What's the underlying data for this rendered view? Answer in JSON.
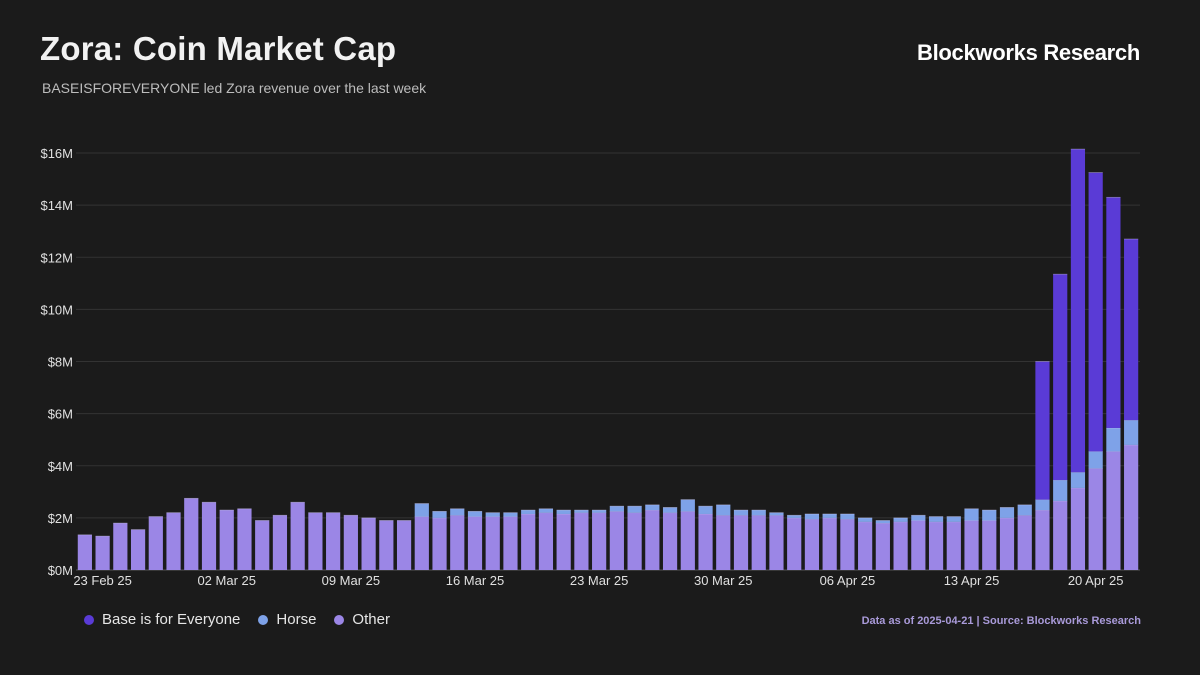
{
  "header": {
    "title": "Zora: Coin Market Cap",
    "subtitle": "BASEISFOREVERYONE led Zora revenue over the last week",
    "brand": "Blockworks Research"
  },
  "footer": {
    "note": "Data as of 2025-04-21 | Source: Blockworks Research"
  },
  "colors": {
    "background": "#1b1b1b",
    "base": "#5a3bd6",
    "horse": "#7ea2e8",
    "other": "#9b86e6",
    "grid": "#333333"
  },
  "chart_data": {
    "type": "bar",
    "stacked": true,
    "title": "Zora: Coin Market Cap",
    "subtitle": "BASEISFOREVERYONE led Zora revenue over the last week",
    "xlabel": "",
    "ylabel": "",
    "ylim": [
      0,
      16.5
    ],
    "y_unit": "millions USD",
    "y_ticks": [
      "$0M",
      "$2M",
      "$4M",
      "$6M",
      "$8M",
      "$10M",
      "$12M",
      "$14M",
      "$16M"
    ],
    "y_tick_values": [
      0,
      2,
      4,
      6,
      8,
      10,
      12,
      14,
      16
    ],
    "x_tick_labels": [
      {
        "date": "2025-02-23",
        "label": "23 Feb 25"
      },
      {
        "date": "2025-03-02",
        "label": "02 Mar 25"
      },
      {
        "date": "2025-03-09",
        "label": "09 Mar 25"
      },
      {
        "date": "2025-03-16",
        "label": "16 Mar 25"
      },
      {
        "date": "2025-03-23",
        "label": "23 Mar 25"
      },
      {
        "date": "2025-03-30",
        "label": "30 Mar 25"
      },
      {
        "date": "2025-04-06",
        "label": "06 Apr 25"
      },
      {
        "date": "2025-04-13",
        "label": "13 Apr 25"
      },
      {
        "date": "2025-04-20",
        "label": "20 Apr 25"
      }
    ],
    "grid": true,
    "legend_position": "bottom-left",
    "categories": [
      "2025-02-22",
      "2025-02-23",
      "2025-02-24",
      "2025-02-25",
      "2025-02-26",
      "2025-02-27",
      "2025-02-28",
      "2025-03-01",
      "2025-03-02",
      "2025-03-03",
      "2025-03-04",
      "2025-03-05",
      "2025-03-06",
      "2025-03-07",
      "2025-03-08",
      "2025-03-09",
      "2025-03-10",
      "2025-03-11",
      "2025-03-12",
      "2025-03-13",
      "2025-03-14",
      "2025-03-15",
      "2025-03-16",
      "2025-03-17",
      "2025-03-18",
      "2025-03-19",
      "2025-03-20",
      "2025-03-21",
      "2025-03-22",
      "2025-03-23",
      "2025-03-24",
      "2025-03-25",
      "2025-03-26",
      "2025-03-27",
      "2025-03-28",
      "2025-03-29",
      "2025-03-30",
      "2025-03-31",
      "2025-04-01",
      "2025-04-02",
      "2025-04-03",
      "2025-04-04",
      "2025-04-05",
      "2025-04-06",
      "2025-04-07",
      "2025-04-08",
      "2025-04-09",
      "2025-04-10",
      "2025-04-11",
      "2025-04-12",
      "2025-04-13",
      "2025-04-14",
      "2025-04-15",
      "2025-04-16",
      "2025-04-17",
      "2025-04-18",
      "2025-04-19",
      "2025-04-20",
      "2025-04-21",
      "2025-04-22"
    ],
    "series": [
      {
        "name": "Other",
        "color": "#9b86e6",
        "values": [
          1.35,
          1.3,
          1.8,
          1.55,
          2.05,
          2.2,
          2.75,
          2.6,
          2.3,
          2.35,
          1.9,
          2.1,
          2.6,
          2.2,
          2.2,
          2.1,
          2.0,
          1.9,
          1.9,
          2.05,
          2.0,
          2.1,
          2.05,
          2.05,
          2.05,
          2.15,
          2.2,
          2.15,
          2.2,
          2.2,
          2.25,
          2.2,
          2.3,
          2.2,
          2.25,
          2.15,
          2.1,
          2.1,
          2.1,
          2.1,
          2.0,
          1.95,
          2.0,
          1.95,
          1.85,
          1.8,
          1.85,
          1.9,
          1.85,
          1.85,
          1.9,
          1.9,
          2.0,
          2.1,
          2.3,
          2.65,
          3.15,
          3.9,
          4.55,
          4.8
        ]
      },
      {
        "name": "Horse",
        "color": "#7ea2e8",
        "values": [
          0,
          0,
          0,
          0,
          0,
          0,
          0,
          0,
          0,
          0,
          0,
          0,
          0,
          0,
          0,
          0,
          0,
          0,
          0,
          0.5,
          0.25,
          0.25,
          0.2,
          0.15,
          0.15,
          0.15,
          0.15,
          0.15,
          0.1,
          0.1,
          0.2,
          0.25,
          0.2,
          0.2,
          0.45,
          0.3,
          0.4,
          0.2,
          0.2,
          0.1,
          0.1,
          0.2,
          0.15,
          0.2,
          0.15,
          0.1,
          0.15,
          0.2,
          0.2,
          0.2,
          0.45,
          0.4,
          0.4,
          0.4,
          0.4,
          0.8,
          0.6,
          0.65,
          0.9,
          0.95
        ]
      },
      {
        "name": "Base is for Everyone",
        "color": "#5a3bd6",
        "values": [
          0,
          0,
          0,
          0,
          0,
          0,
          0,
          0,
          0,
          0,
          0,
          0,
          0,
          0,
          0,
          0,
          0,
          0,
          0,
          0,
          0,
          0,
          0,
          0,
          0,
          0,
          0,
          0,
          0,
          0,
          0,
          0,
          0,
          0,
          0,
          0,
          0,
          0,
          0,
          0,
          0,
          0,
          0,
          0,
          0,
          0,
          0,
          0,
          0,
          0,
          0,
          0,
          0,
          0,
          5.3,
          7.9,
          12.4,
          10.7,
          8.85,
          6.95
        ]
      }
    ]
  },
  "legend": {
    "items": [
      {
        "label": "Base is for Everyone",
        "color": "#5a3bd6"
      },
      {
        "label": "Horse",
        "color": "#7ea2e8"
      },
      {
        "label": "Other",
        "color": "#9b86e6"
      }
    ]
  }
}
